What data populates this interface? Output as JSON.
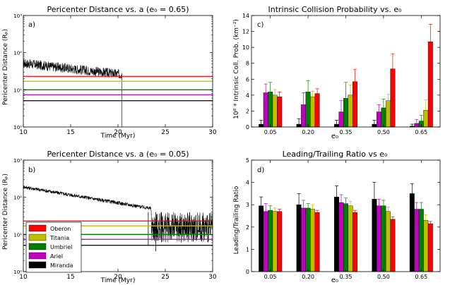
{
  "figure": {
    "panel_labels": [
      "a)",
      "b)",
      "c)",
      "d)"
    ]
  },
  "colors": {
    "Oberon": "#ff0000",
    "Titania": "#bfbf00",
    "Umbriel": "#008000",
    "Ariel": "#bf00bf",
    "Miranda": "#000000",
    "trace": "#000000"
  },
  "chart_data": [
    {
      "id": "a",
      "type": "line",
      "title": "Pericenter Distance vs. a (e₀ = 0.65)",
      "xlabel": "Time (Myr)",
      "ylabel": "Pericenter Distance (Rₚ)",
      "xlim": [
        10,
        30
      ],
      "ylim_log": [
        1,
        1000
      ],
      "x_ticks": [
        "10",
        "15",
        "20",
        "25",
        "30"
      ],
      "y_ticks": [
        "10⁰",
        "10¹",
        "10²",
        "10³"
      ],
      "trace": {
        "x_start": 10,
        "y_start": 52,
        "x_end": 20.4,
        "y_end": 26,
        "noise_factor": 1.35,
        "drop_to": 1,
        "mid_spikes": []
      },
      "hlines": [
        {
          "name": "Oberon",
          "y": 23
        },
        {
          "name": "Titania",
          "y": 17
        },
        {
          "name": "Umbriel",
          "y": 10
        },
        {
          "name": "Ariel",
          "y": 7.4
        },
        {
          "name": "Miranda",
          "y": 5.1
        }
      ]
    },
    {
      "id": "b",
      "type": "line",
      "title": "Pericenter Distance vs. a (e₀ = 0.05)",
      "xlabel": "Time (Myr)",
      "ylabel": "Pericenter Distance (Rₚ)",
      "xlim": [
        10,
        30
      ],
      "ylim_log": [
        1,
        1000
      ],
      "x_ticks": [
        "10",
        "15",
        "20",
        "25",
        "30"
      ],
      "y_ticks": [
        "10⁰",
        "10¹",
        "10²",
        "10³"
      ],
      "trace": {
        "x_start": 10,
        "y_start": 190,
        "x_end": 23.5,
        "y_end": 50,
        "noise_factor": 1.12,
        "chaotic_until": 30,
        "chaotic_low": 6,
        "chaotic_high": 40,
        "mid_spikes": [
          {
            "x": 23.2,
            "y": 5
          },
          {
            "x": 24.0,
            "y": 3.5
          },
          {
            "x": 24.6,
            "y": 7
          }
        ]
      },
      "hlines": [
        {
          "name": "Oberon",
          "y": 23
        },
        {
          "name": "Titania",
          "y": 17
        },
        {
          "name": "Umbriel",
          "y": 10
        },
        {
          "name": "Ariel",
          "y": 7.4
        },
        {
          "name": "Miranda",
          "y": 5.1
        }
      ],
      "legend": [
        "Oberon",
        "Titania",
        "Umbriel",
        "Ariel",
        "Miranda"
      ],
      "legend_position": "lower-left"
    },
    {
      "id": "c",
      "type": "bar",
      "title": "Intrinsic Collision Probability vs. e₀",
      "xlabel": "e₀",
      "ylabel": "10⁸ * Intrinsic Coll. Prob. (km⁻²)",
      "categories": [
        "0.05",
        "0.20",
        "0.35",
        "0.50",
        "0.65"
      ],
      "ylim": [
        0,
        14
      ],
      "y_ticks": [
        "0",
        "2",
        "4",
        "6",
        "8",
        "10",
        "12",
        "14"
      ],
      "series": [
        {
          "name": "Miranda",
          "values": [
            0.35,
            0.35,
            0.35,
            0.35,
            0.1
          ],
          "errors": [
            0.5,
            0.7,
            0.5,
            0.5,
            0.25
          ]
        },
        {
          "name": "Ariel",
          "values": [
            4.3,
            2.8,
            1.9,
            1.9,
            0.45
          ],
          "errors": [
            1.1,
            1.5,
            1.4,
            0.9,
            0.5
          ]
        },
        {
          "name": "Umbriel",
          "values": [
            4.4,
            4.4,
            3.6,
            2.4,
            0.75
          ],
          "errors": [
            1.2,
            1.4,
            2.0,
            1.1,
            0.7
          ]
        },
        {
          "name": "Titania",
          "values": [
            4.0,
            3.8,
            4.0,
            3.3,
            2.1
          ],
          "errors": [
            0.7,
            0.7,
            1.3,
            0.8,
            1.3
          ]
        },
        {
          "name": "Oberon",
          "values": [
            3.8,
            4.2,
            5.7,
            7.3,
            10.7
          ],
          "errors": [
            0.6,
            0.6,
            1.5,
            1.9,
            2.2
          ]
        }
      ]
    },
    {
      "id": "d",
      "type": "bar",
      "title": "Leading/Trailing Ratio vs e₀",
      "xlabel": "e₀",
      "ylabel": "Leading/Trailing Ratio",
      "categories": [
        "0.05",
        "0.20",
        "0.35",
        "0.50",
        "0.65"
      ],
      "ylim": [
        0,
        5
      ],
      "y_ticks": [
        "0",
        "1",
        "2",
        "3",
        "4",
        "5"
      ],
      "series": [
        {
          "name": "Miranda",
          "values": [
            2.95,
            3.0,
            3.35,
            3.25,
            3.5
          ],
          "errors": [
            0.4,
            0.5,
            0.5,
            0.75,
            0.45
          ]
        },
        {
          "name": "Ariel",
          "values": [
            2.7,
            2.85,
            3.1,
            2.95,
            2.8
          ],
          "errors": [
            0.35,
            0.35,
            0.35,
            0.3,
            0.3
          ]
        },
        {
          "name": "Umbriel",
          "values": [
            2.75,
            2.85,
            3.05,
            2.95,
            2.8
          ],
          "errors": [
            0.2,
            0.2,
            0.25,
            0.25,
            0.3
          ]
        },
        {
          "name": "Titania",
          "values": [
            2.7,
            2.8,
            2.95,
            2.7,
            2.3
          ],
          "errors": [
            0.15,
            0.2,
            0.2,
            0.2,
            0.25
          ]
        },
        {
          "name": "Oberon",
          "values": [
            2.7,
            2.65,
            2.65,
            2.35,
            2.15
          ],
          "errors": [
            0.1,
            0.1,
            0.1,
            0.1,
            0.1
          ]
        }
      ]
    }
  ]
}
